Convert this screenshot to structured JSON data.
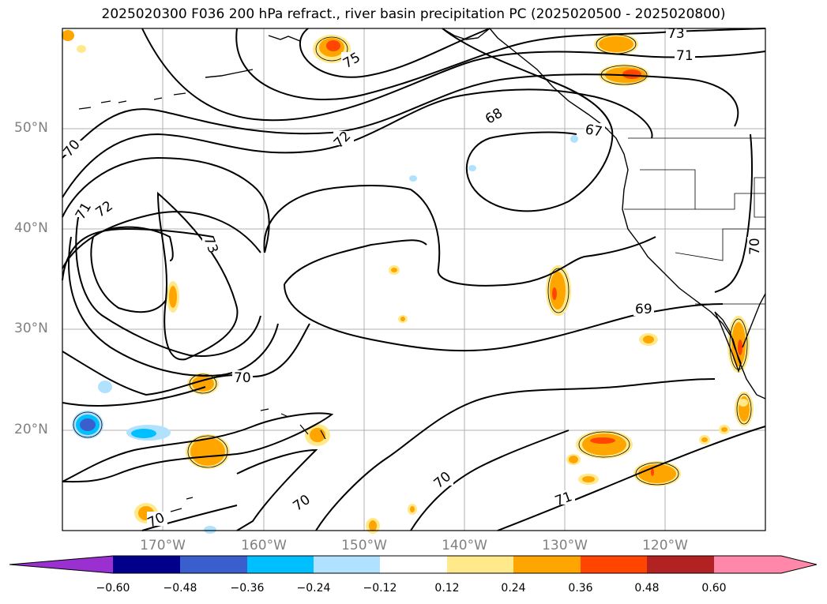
{
  "title": "2025020300 F036 200 hPa refract., river basin precipitation PC (2025020500 - 2025020800)",
  "map": {
    "lat_labels": [
      "50°N",
      "40°N",
      "30°N",
      "20°N"
    ],
    "lon_labels": [
      "170°W",
      "160°W",
      "150°W",
      "140°W",
      "130°W",
      "120°W"
    ],
    "contour_labels": [
      "73",
      "71",
      "75",
      "68",
      "67",
      "72",
      "70",
      "71",
      "72",
      "73",
      "70",
      "69",
      "70",
      "70",
      "70",
      "71",
      "70"
    ]
  },
  "colorbar": {
    "tick_labels": [
      "−0.60",
      "−0.48",
      "−0.36",
      "−0.24",
      "−0.12",
      "0.12",
      "0.24",
      "0.36",
      "0.48",
      "0.60"
    ],
    "colors": [
      "#9b30d0",
      "#00008b",
      "#3a5fcd",
      "#00bfff",
      "#b0e2ff",
      "#ffffff",
      "#ffe98a",
      "#ffa500",
      "#ff4500",
      "#b22222",
      "#ff88aa",
      "#ff88aa"
    ]
  }
}
